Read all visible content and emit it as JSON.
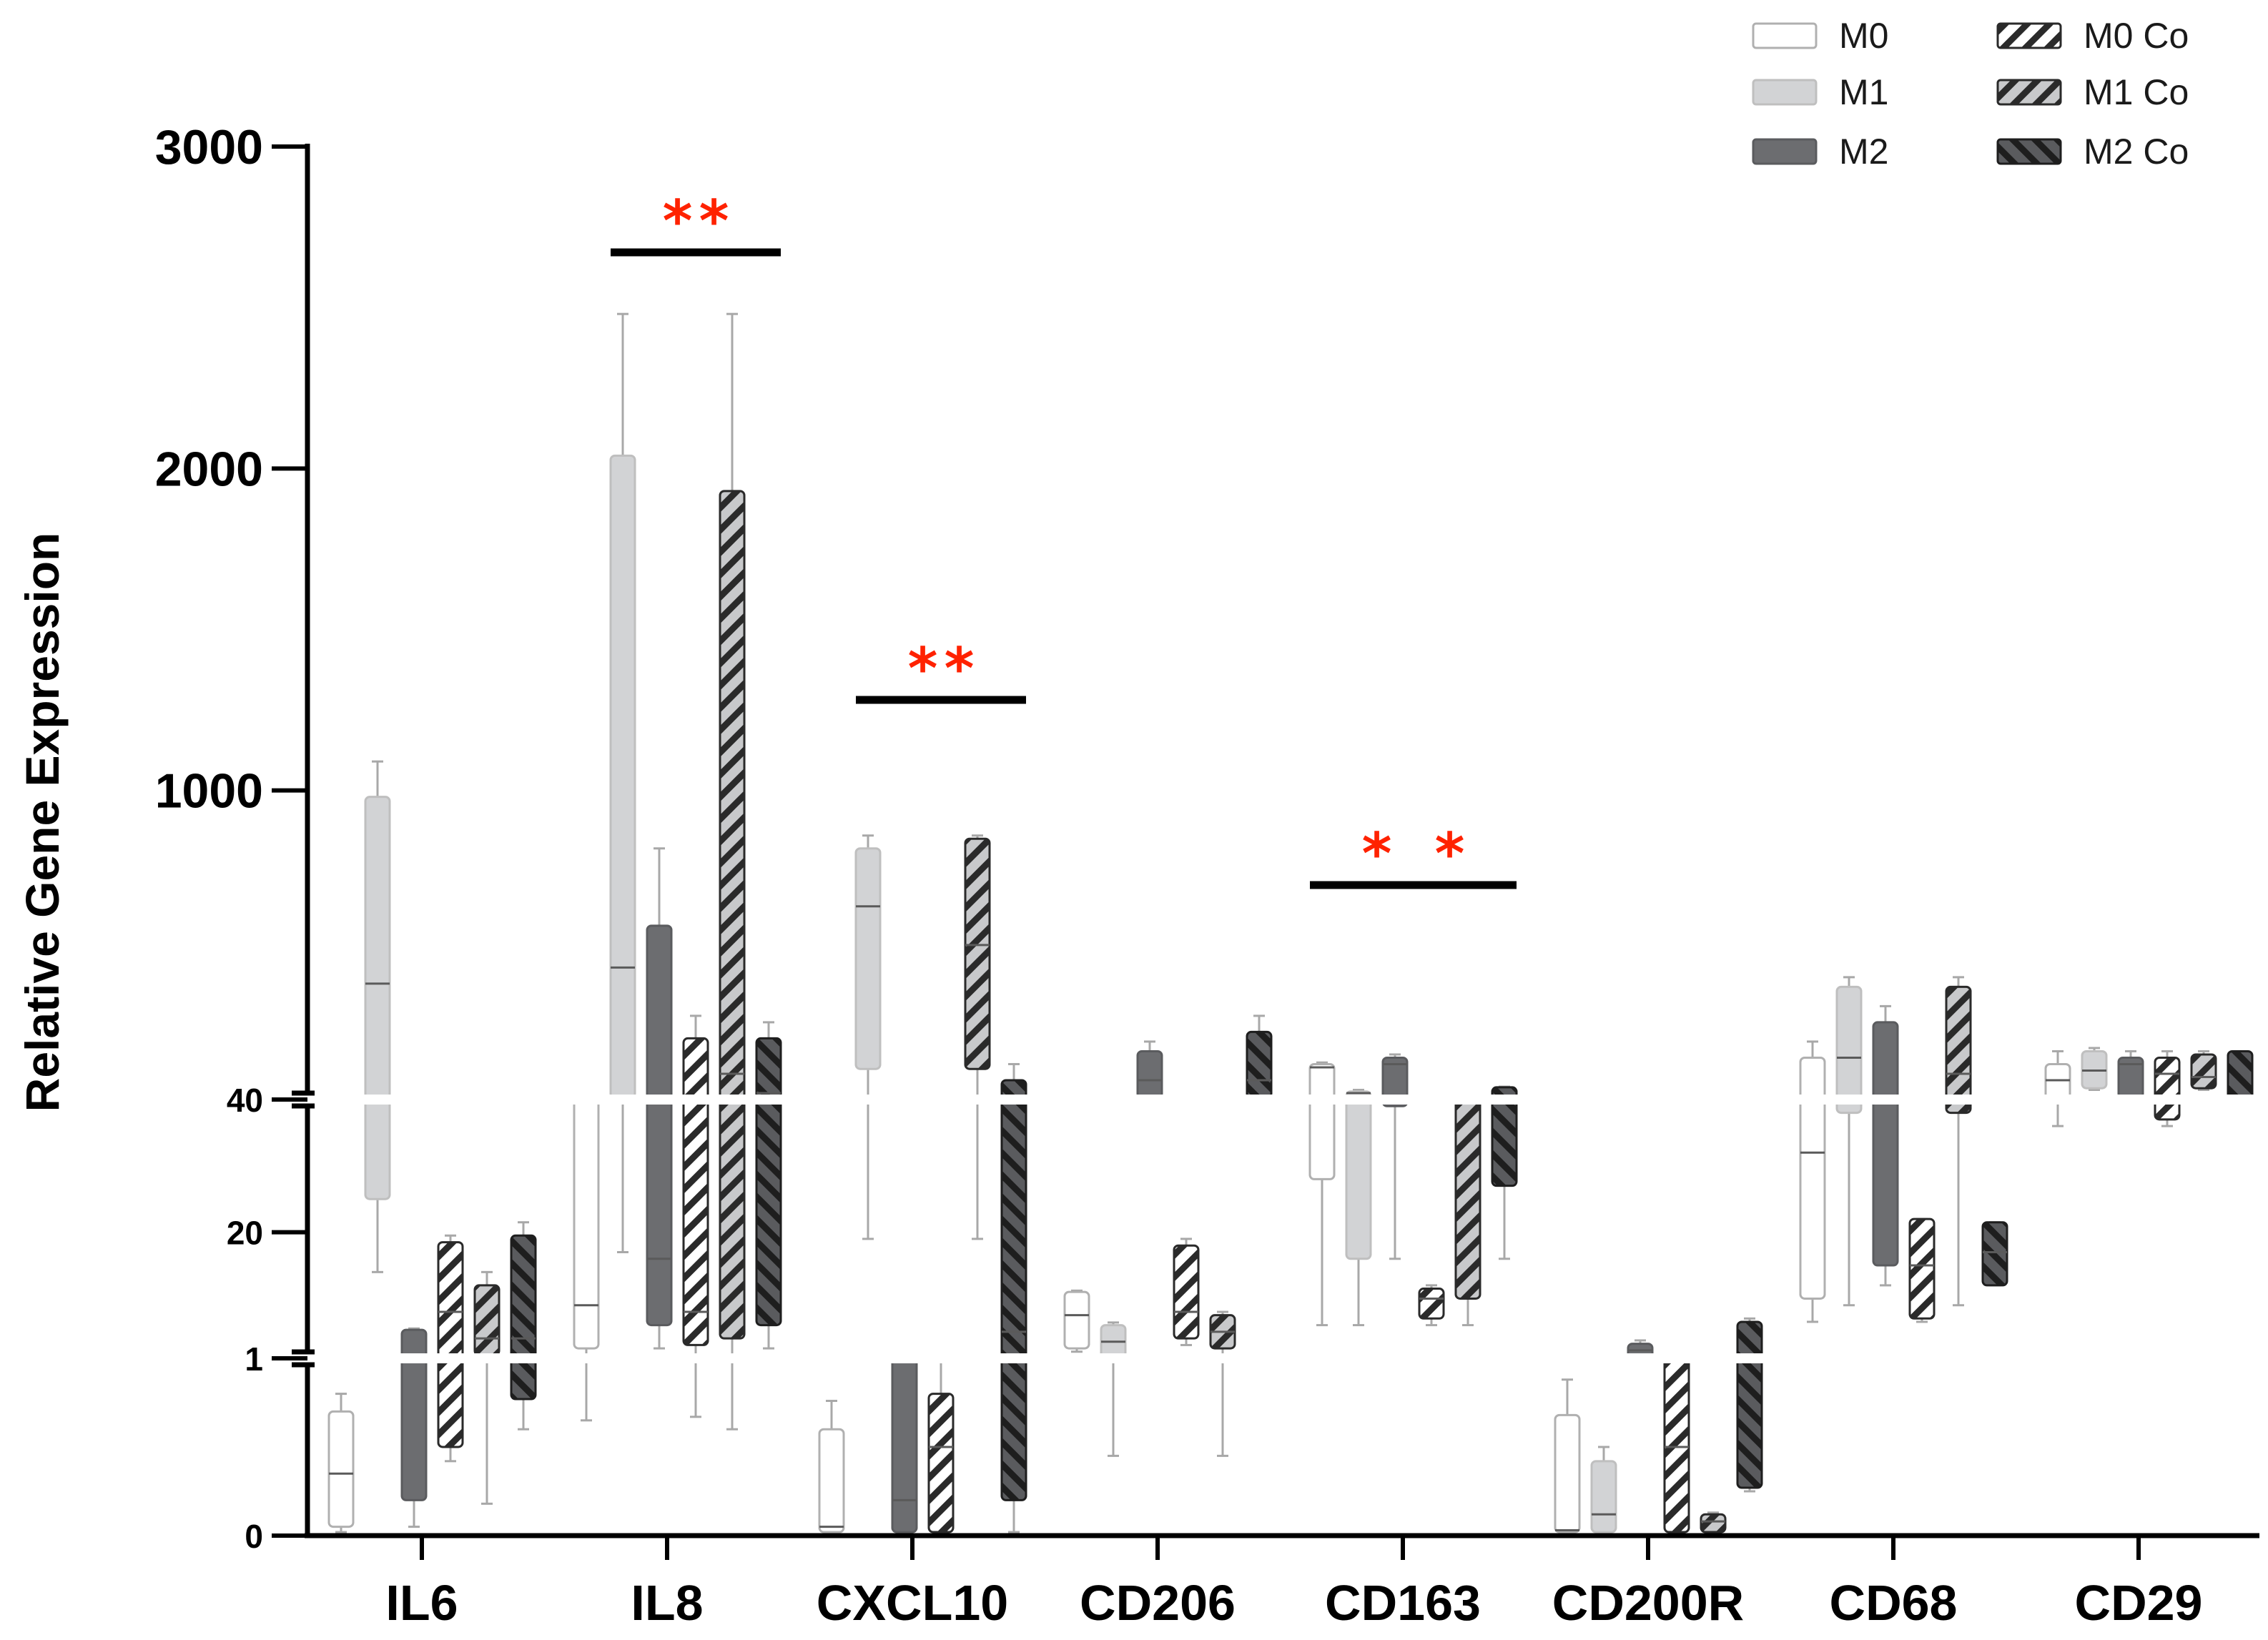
{
  "chart_data": {
    "type": "boxplot",
    "ylabel": "Relative Gene Expression",
    "y_axis_segments": [
      {
        "range": [
          0,
          1
        ],
        "ticks": [
          0,
          1
        ]
      },
      {
        "range": [
          1,
          40
        ],
        "ticks": [
          20,
          40
        ]
      },
      {
        "range": [
          40,
          3000
        ],
        "ticks": [
          1000,
          2000,
          3000
        ]
      }
    ],
    "ytick_labels": [
      "0",
      "1",
      "20",
      "40",
      "1000",
      "2000",
      "3000"
    ],
    "categories": [
      "IL6",
      "IL8",
      "CXCL10",
      "CD206",
      "CD163",
      "CD200R",
      "CD68",
      "CD29"
    ],
    "series": [
      {
        "name": "M0",
        "fill": "#ffffff",
        "stroke": "#b0b0b0",
        "pattern": "none"
      },
      {
        "name": "M1",
        "fill": "#d2d3d5",
        "stroke": "#bfbfbf",
        "pattern": "none"
      },
      {
        "name": "M2",
        "fill": "#6c6d70",
        "stroke": "#5a5b5e",
        "pattern": "none"
      },
      {
        "name": "M0 Co",
        "fill": "#ffffff",
        "stroke": "#2a2a2a",
        "pattern": "hatch-light"
      },
      {
        "name": "M1 Co",
        "fill": "#c8c9cb",
        "stroke": "#2a2a2a",
        "pattern": "hatch-mid"
      },
      {
        "name": "M2 Co",
        "fill": "#5a5b5e",
        "stroke": "#1e1e1e",
        "pattern": "hatch-dark"
      }
    ],
    "boxes": [
      {
        "category": "IL6",
        "series": "M0",
        "min": 0.02,
        "q1": 0.05,
        "median": 0.35,
        "q3": 0.7,
        "max": 0.8
      },
      {
        "category": "IL6",
        "series": "M1",
        "min": 14,
        "q1": 25,
        "median": 400,
        "q3": 980,
        "max": 1090
      },
      {
        "category": "IL6",
        "series": "M2",
        "min": 0.05,
        "q1": 0.2,
        "median": 1.5,
        "q3": 5.3,
        "max": 5.5
      },
      {
        "category": "IL6",
        "series": "M0 Co",
        "min": 0.42,
        "q1": 0.5,
        "median": 8,
        "q3": 18.5,
        "max": 19.5
      },
      {
        "category": "IL6",
        "series": "M1 Co",
        "min": 0.18,
        "q1": 1.5,
        "median": 4,
        "q3": 12,
        "max": 14
      },
      {
        "category": "IL6",
        "series": "M2 Co",
        "min": 0.6,
        "q1": 0.77,
        "median": 4,
        "q3": 19.5,
        "max": 21.5
      },
      {
        "category": "IL8",
        "series": "M0",
        "min": 0.65,
        "q1": 2.5,
        "median": 9,
        "q3": 41.5,
        "max": 42
      },
      {
        "category": "IL8",
        "series": "M1",
        "min": 17,
        "q1": 45,
        "median": 450,
        "q3": 2040,
        "max": 2480
      },
      {
        "category": "IL8",
        "series": "M2",
        "min": 2.5,
        "q1": 6,
        "median": 16,
        "q3": 580,
        "max": 820
      },
      {
        "category": "IL8",
        "series": "M0 Co",
        "min": 0.67,
        "q1": 3,
        "median": 8,
        "q3": 230,
        "max": 300
      },
      {
        "category": "IL8",
        "series": "M1 Co",
        "min": 0.6,
        "q1": 4,
        "median": 120,
        "q3": 1930,
        "max": 2480
      },
      {
        "category": "IL8",
        "series": "M2 Co",
        "min": 2.5,
        "q1": 6,
        "median": 60,
        "q3": 230,
        "max": 280
      },
      {
        "category": "CXCL10",
        "series": "M0",
        "min": 0.02,
        "q1": 0.02,
        "median": 0.05,
        "q3": 0.6,
        "max": 0.76
      },
      {
        "category": "CXCL10",
        "series": "M1",
        "min": 19,
        "q1": 135,
        "median": 640,
        "q3": 820,
        "max": 860
      },
      {
        "category": "CXCL10",
        "series": "M2",
        "min": 0.02,
        "q1": 0.02,
        "median": 0.2,
        "q3": 1,
        "max": 1.05
      },
      {
        "category": "CXCL10",
        "series": "M0 Co",
        "min": 0.02,
        "q1": 0.02,
        "median": 0.5,
        "q3": 0.8,
        "max": 1.05
      },
      {
        "category": "CXCL10",
        "series": "M1 Co",
        "min": 19,
        "q1": 135,
        "median": 520,
        "q3": 850,
        "max": 860
      },
      {
        "category": "CXCL10",
        "series": "M2 Co",
        "min": 0.02,
        "q1": 0.2,
        "median": 5,
        "q3": 100,
        "max": 150
      },
      {
        "category": "CD206",
        "series": "M0",
        "min": 2,
        "q1": 2.5,
        "median": 7.5,
        "q3": 11,
        "max": 11.2
      },
      {
        "category": "CD206",
        "series": "M1",
        "min": 0.45,
        "q1": 1,
        "median": 3.5,
        "q3": 6,
        "max": 6.4
      },
      {
        "category": "CD206",
        "series": "M2",
        "min": 40,
        "q1": 45,
        "median": 100,
        "q3": 190,
        "max": 220
      },
      {
        "category": "CD206",
        "series": "M0 Co",
        "min": 3,
        "q1": 4,
        "median": 8,
        "q3": 18,
        "max": 19
      },
      {
        "category": "CD206",
        "series": "M1 Co",
        "min": 0.45,
        "q1": 2.5,
        "median": 5,
        "q3": 7.5,
        "max": 8
      },
      {
        "category": "CD206",
        "series": "M2 Co",
        "min": 40,
        "q1": 45,
        "median": 100,
        "q3": 250,
        "max": 300
      },
      {
        "category": "CD163",
        "series": "M0",
        "min": 6,
        "q1": 28,
        "median": 140,
        "q3": 150,
        "max": 155
      },
      {
        "category": "CD163",
        "series": "M1",
        "min": 6,
        "q1": 16,
        "median": 60,
        "q3": 65,
        "max": 70
      },
      {
        "category": "CD163",
        "series": "M2",
        "min": 16,
        "q1": 39,
        "median": 150,
        "q3": 170,
        "max": 180
      },
      {
        "category": "CD163",
        "series": "M0 Co",
        "min": 6,
        "q1": 7,
        "median": 10,
        "q3": 11.5,
        "max": 12
      },
      {
        "category": "CD163",
        "series": "M1 Co",
        "min": 6,
        "q1": 10,
        "median": 40,
        "q3": 43,
        "max": 44
      },
      {
        "category": "CD163",
        "series": "M2 Co",
        "min": 16,
        "q1": 27,
        "median": 40,
        "q3": 78,
        "max": 80
      },
      {
        "category": "CD200R",
        "series": "M0",
        "min": 0.02,
        "q1": 0.02,
        "median": 0.03,
        "q3": 0.68,
        "max": 0.88
      },
      {
        "category": "CD200R",
        "series": "M1",
        "min": 0.02,
        "q1": 0.02,
        "median": 0.12,
        "q3": 0.42,
        "max": 0.5
      },
      {
        "category": "CD200R",
        "series": "M2",
        "min": 1,
        "q1": 1.1,
        "median": 2.2,
        "q3": 3.2,
        "max": 3.7
      },
      {
        "category": "CD200R",
        "series": "M0 Co",
        "min": 0.02,
        "q1": 0.02,
        "median": 0.5,
        "q3": 1.1,
        "max": 1.2
      },
      {
        "category": "CD200R",
        "series": "M1 Co",
        "min": 0.02,
        "q1": 0.02,
        "median": 0.08,
        "q3": 0.12,
        "max": 0.13
      },
      {
        "category": "CD200R",
        "series": "M2 Co",
        "min": 0.25,
        "q1": 0.27,
        "median": 1.5,
        "q3": 6.5,
        "max": 7
      },
      {
        "category": "CD68",
        "series": "M0",
        "min": 6.5,
        "q1": 10,
        "median": 32,
        "q3": 170,
        "max": 220
      },
      {
        "category": "CD68",
        "series": "M1",
        "min": 9,
        "q1": 38,
        "median": 170,
        "q3": 390,
        "max": 420
      },
      {
        "category": "CD68",
        "series": "M2",
        "min": 12,
        "q1": 15,
        "median": 40,
        "q3": 280,
        "max": 330
      },
      {
        "category": "CD68",
        "series": "M0 Co",
        "min": 6.5,
        "q1": 7,
        "median": 15,
        "q3": 22,
        "max": 22
      },
      {
        "category": "CD68",
        "series": "M1 Co",
        "min": 9,
        "q1": 38,
        "median": 120,
        "q3": 390,
        "max": 420
      },
      {
        "category": "CD68",
        "series": "M2 Co",
        "min": 12,
        "q1": 12,
        "median": 17,
        "q3": 21.5,
        "max": 21.5
      },
      {
        "category": "CD29",
        "series": "M0",
        "min": 36,
        "q1": 42,
        "median": 100,
        "q3": 150,
        "max": 190
      },
      {
        "category": "CD29",
        "series": "M1",
        "min": 70,
        "q1": 75,
        "median": 130,
        "q3": 190,
        "max": 200
      },
      {
        "category": "CD29",
        "series": "M2",
        "min": 40,
        "q1": 45,
        "median": 150,
        "q3": 170,
        "max": 190
      },
      {
        "category": "CD29",
        "series": "M0 Co",
        "min": 36,
        "q1": 37,
        "median": 120,
        "q3": 170,
        "max": 190
      },
      {
        "category": "CD29",
        "series": "M1 Co",
        "min": 70,
        "q1": 75,
        "median": 110,
        "q3": 180,
        "max": 190
      },
      {
        "category": "CD29",
        "series": "M2 Co",
        "min": 40,
        "q1": 40,
        "median": 45,
        "q3": 190,
        "max": 190
      }
    ],
    "significance": [
      {
        "category": "IL8",
        "compare": [
          "M1",
          "M1 Co"
        ],
        "label": "*"
      },
      {
        "category": "IL8",
        "compare": [
          "M2",
          "M2 Co"
        ],
        "label": "*"
      },
      {
        "category": "CXCL10",
        "compare": [
          "M1",
          "M1 Co"
        ],
        "label": "*"
      },
      {
        "category": "CXCL10",
        "compare": [
          "M2",
          "M2 Co"
        ],
        "label": "*"
      },
      {
        "category": "CD163",
        "compare": [
          "M0",
          "M0 Co"
        ],
        "label": "*"
      },
      {
        "category": "CD163",
        "compare": [
          "M2",
          "M2 Co"
        ],
        "label": "*"
      }
    ],
    "legend_position": "top-right",
    "colors": {
      "axis": "#000000",
      "star": "#ff2200",
      "background": "#ffffff"
    }
  }
}
